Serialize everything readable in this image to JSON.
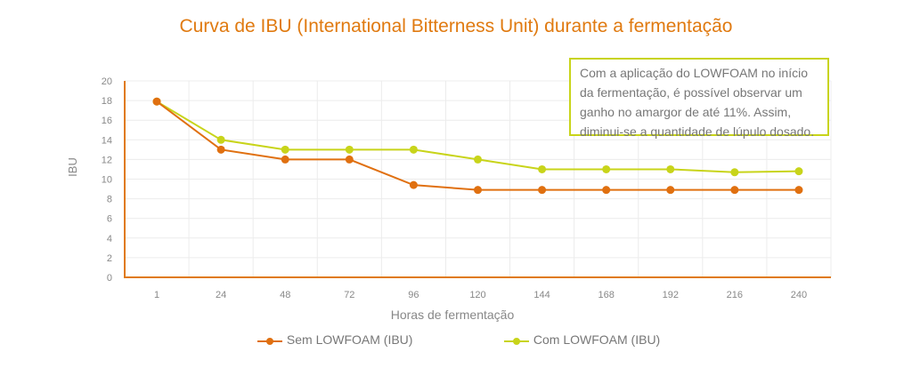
{
  "colors": {
    "title": "#e07a10",
    "series_sem": "#e07010",
    "series_com": "#c8d41a",
    "axis": "#e07a10",
    "grid": "#ececec",
    "text": "#777777"
  },
  "chart_data": {
    "type": "line",
    "title": "Curva de IBU (International Bitterness Unit) durante a fermentação",
    "xlabel": "Horas de fermentação",
    "ylabel": "IBU",
    "categories": [
      "1",
      "24",
      "48",
      "72",
      "96",
      "120",
      "144",
      "168",
      "192",
      "216",
      "240"
    ],
    "yticks": [
      "0",
      "2",
      "4",
      "6",
      "8",
      "10",
      "12",
      "14",
      "16",
      "18",
      "20"
    ],
    "ylim": [
      0,
      20
    ],
    "grid": true,
    "legend_position": "bottom",
    "series": [
      {
        "name": "Sem LOWFOAM (IBU)",
        "values": [
          17.9,
          13.0,
          12.0,
          12.0,
          9.4,
          8.9,
          8.9,
          8.9,
          8.9,
          8.9,
          8.9
        ]
      },
      {
        "name": "Com LOWFOAM (IBU)",
        "values": [
          17.9,
          14.0,
          13.0,
          13.0,
          13.0,
          12.0,
          11.0,
          11.0,
          11.0,
          10.7,
          10.8
        ]
      }
    ],
    "annotation": "Com a aplicação do LOWFOAM no início da fermentação, é possível observar um ganho no amargor de até 11%. Assim, diminui-se a quantidade de lúpulo dosado."
  }
}
